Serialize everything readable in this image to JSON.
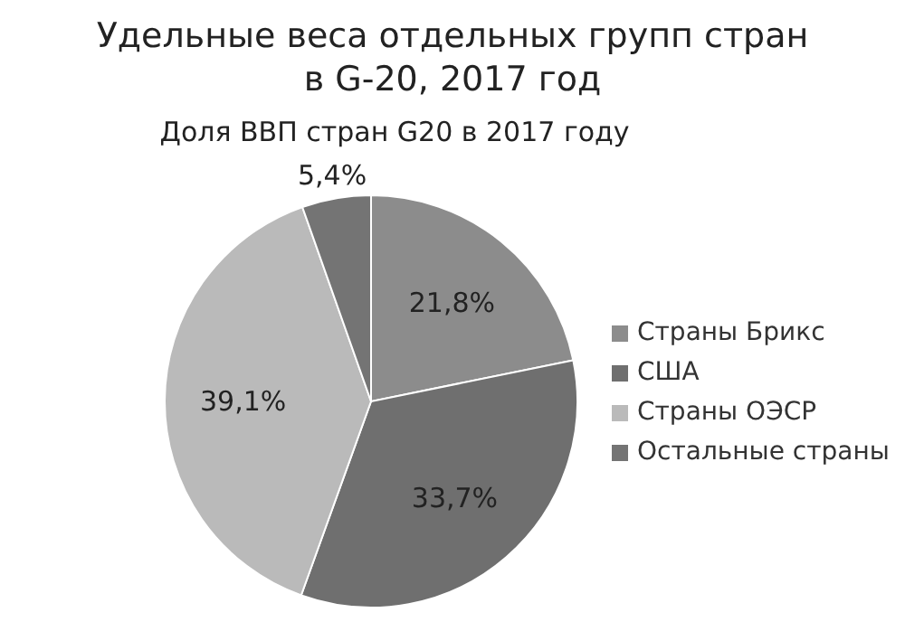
{
  "chart_data": {
    "type": "pie",
    "title": "Удельные веса отдельных групп стран в G-20, 2017 год",
    "subtitle": "Доля ВВП стран G20 в 2017 году",
    "categories": [
      "Страны Брикс",
      "США",
      "Страны ОЭСР",
      "Остальные страны"
    ],
    "values": [
      21.8,
      33.7,
      39.1,
      5.4
    ],
    "colors": [
      "#8c8c8c",
      "#6f6f6f",
      "#bababa",
      "#747474"
    ],
    "value_labels": [
      "21,8%",
      "33,7%",
      "39,1%",
      "5,4%"
    ],
    "legend": "right"
  }
}
